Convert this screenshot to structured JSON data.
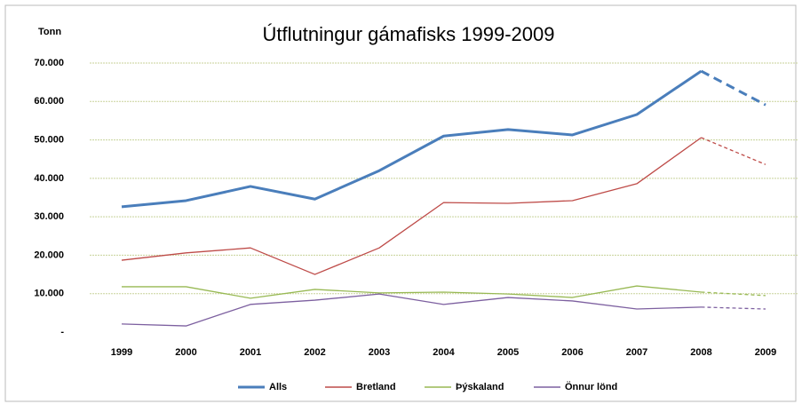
{
  "chart_data": {
    "type": "line",
    "title": "Útflutningur gámafisks 1999-2009",
    "y_label": "Tonn",
    "categories": [
      "1999",
      "2000",
      "2001",
      "2002",
      "2003",
      "2004",
      "2005",
      "2006",
      "2007",
      "2008",
      "2009"
    ],
    "projected": [
      "2009"
    ],
    "series": [
      {
        "name": "Alls",
        "color": "#4a7ebb",
        "values": [
          32600,
          34200,
          37900,
          34600,
          42000,
          51000,
          52700,
          51300,
          56600,
          67900,
          59100
        ]
      },
      {
        "name": "Bretland",
        "color": "#be4b48",
        "values": [
          18700,
          20600,
          21900,
          15000,
          21900,
          33700,
          33500,
          34200,
          38600,
          50600,
          43600
        ]
      },
      {
        "name": "Þýskaland",
        "color": "#98b954",
        "values": [
          11800,
          11800,
          8800,
          11100,
          10200,
          10400,
          9900,
          9000,
          12000,
          10400,
          9500
        ]
      },
      {
        "name": "Önnur lönd",
        "color": "#7d60a0",
        "values": [
          2100,
          1600,
          7200,
          8300,
          9900,
          7200,
          9000,
          8100,
          6000,
          6500,
          6000
        ]
      }
    ],
    "ylim": [
      0,
      70000
    ],
    "yticks": [
      {
        "value": 0,
        "label": "-"
      },
      {
        "value": 10000,
        "label": "10.000"
      },
      {
        "value": 20000,
        "label": "20.000"
      },
      {
        "value": 30000,
        "label": "30.000"
      },
      {
        "value": 40000,
        "label": "40.000"
      },
      {
        "value": 50000,
        "label": "50.000"
      },
      {
        "value": 60000,
        "label": "60.000"
      },
      {
        "value": 70000,
        "label": "70.000"
      }
    ],
    "grid": true,
    "legend": "bottom"
  }
}
